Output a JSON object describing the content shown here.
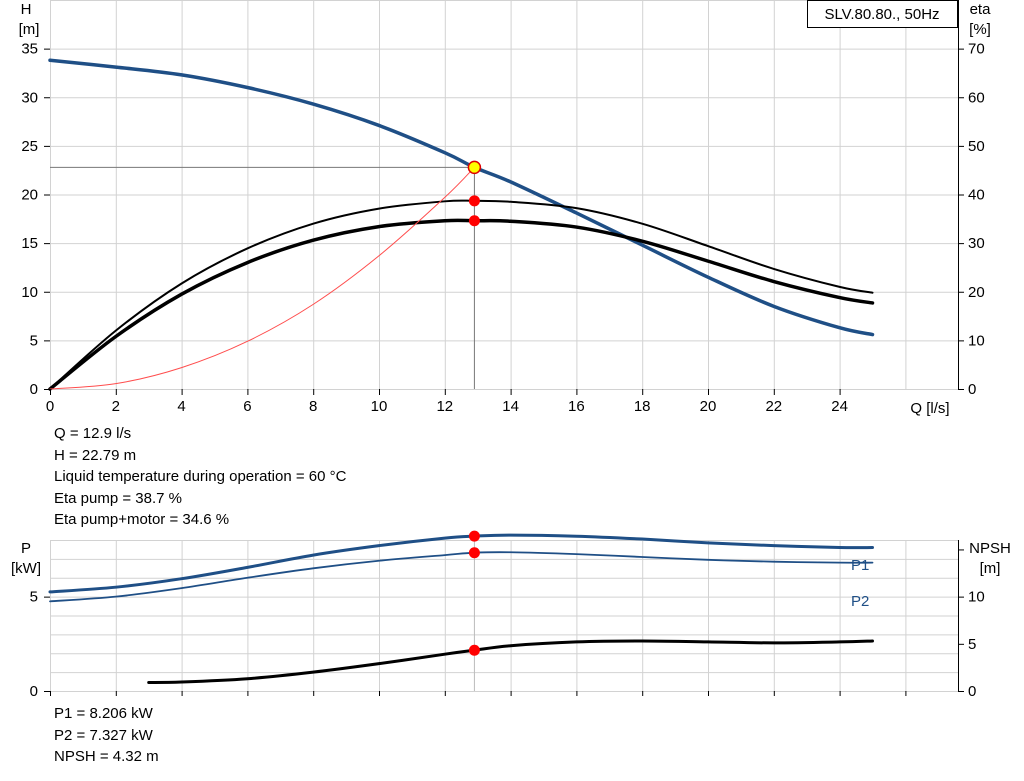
{
  "top": {
    "title_box": "SLV.80.80., 50Hz",
    "left_axis_label": [
      "H",
      "[m]"
    ],
    "right_axis_label": [
      "eta",
      "[%]"
    ],
    "x_axis_label": "Q [l/s]",
    "x_ticks": [
      "0",
      "2",
      "4",
      "6",
      "8",
      "10",
      "12",
      "14",
      "16",
      "18",
      "20",
      "22",
      "24"
    ],
    "y_ticks_left": [
      "0",
      "5",
      "10",
      "15",
      "20",
      "25",
      "30",
      "35"
    ],
    "y_ticks_right": [
      "0",
      "10",
      "20",
      "30",
      "40",
      "50",
      "60",
      "70"
    ]
  },
  "top_info": [
    "Q = 12.9 l/s",
    "H = 22.79 m",
    "Liquid temperature during operation = 60 °C",
    "Eta pump = 38.7 %",
    "Eta pump+motor = 34.6 %"
  ],
  "bottom": {
    "left_axis_label": [
      "P",
      "[kW]"
    ],
    "right_axis_label": [
      "NPSH",
      "[m]"
    ],
    "y_ticks_left": [
      "0",
      "5"
    ],
    "y_ticks_right": [
      "0",
      "5",
      "10"
    ],
    "series_labels": [
      "P1",
      "P2"
    ]
  },
  "bottom_info": [
    "P1 = 8.206 kW",
    "P2 = 7.327 kW",
    "NPSH = 4.32 m"
  ],
  "colors": {
    "head": "#1f4f86",
    "eta": "#000000",
    "system": "#ff4d4d",
    "marker": "#ff0000",
    "duty": "#ffff00"
  },
  "chart_data": [
    {
      "type": "line",
      "title": "SLV.80.80., 50Hz",
      "xlabel": "Q [l/s]",
      "ylabel": "H [m]",
      "ylabel_right": "eta [%]",
      "xlim": [
        0,
        27
      ],
      "ylim": [
        0,
        40
      ],
      "ylim_right": [
        0,
        80
      ],
      "grid": true,
      "series": [
        {
          "axis": "left",
          "color": "#1f4f86",
          "width": 3.5,
          "x": [
            0,
            2,
            4,
            6,
            8,
            10,
            12,
            12.9,
            14,
            16,
            18,
            20,
            22,
            24,
            25
          ],
          "y": [
            33.8,
            33.1,
            32.3,
            31.0,
            29.3,
            27.1,
            24.3,
            22.79,
            21.3,
            18.1,
            14.8,
            11.5,
            8.5,
            6.3,
            5.6
          ]
        },
        {
          "axis": "right",
          "color": "#000000",
          "width": 2,
          "x": [
            0,
            2,
            4,
            6,
            8,
            10,
            12,
            12.9,
            14,
            16,
            18,
            20,
            22,
            24,
            25
          ],
          "y": [
            0,
            12.0,
            21.7,
            28.9,
            34.0,
            37.1,
            38.6,
            38.7,
            38.5,
            37.2,
            34.0,
            29.4,
            24.7,
            21.0,
            19.8
          ]
        },
        {
          "axis": "right",
          "color": "#000000",
          "width": 3.5,
          "x": [
            0,
            2,
            4,
            6,
            8,
            10,
            12,
            12.9,
            14,
            16,
            18,
            20,
            22,
            24,
            25
          ],
          "y": [
            0,
            10.8,
            19.5,
            26.0,
            30.6,
            33.4,
            34.6,
            34.6,
            34.5,
            33.3,
            30.4,
            26.3,
            22.1,
            18.8,
            17.7
          ]
        },
        {
          "axis": "left",
          "color": "#ff4d4d",
          "width": 1,
          "x": [
            0,
            2,
            4,
            6,
            8,
            10,
            12,
            12.9
          ],
          "y": [
            0,
            0.55,
            2.2,
            4.9,
            8.7,
            13.7,
            19.7,
            22.79
          ]
        }
      ],
      "duty_point": {
        "x": 12.9,
        "y": 22.79
      },
      "markers_right": [
        38.7,
        34.6
      ]
    },
    {
      "type": "line",
      "xlabel": "",
      "ylabel": "P [kW]",
      "ylabel_right": "NPSH [m]",
      "xlim": [
        0,
        27
      ],
      "ylim": [
        0,
        8
      ],
      "ylim_right": [
        0,
        16
      ],
      "grid": true,
      "series": [
        {
          "name": "P1",
          "axis": "left",
          "color": "#1f4f86",
          "width": 3,
          "x": [
            0,
            2,
            4,
            6,
            8,
            10,
            12,
            12.9,
            14,
            16,
            18,
            20,
            22,
            24,
            25
          ],
          "y": [
            5.25,
            5.5,
            5.95,
            6.55,
            7.2,
            7.7,
            8.1,
            8.206,
            8.26,
            8.2,
            8.05,
            7.85,
            7.7,
            7.6,
            7.6
          ]
        },
        {
          "name": "P2",
          "axis": "left",
          "color": "#1f4f86",
          "width": 1.8,
          "x": [
            0,
            2,
            4,
            6,
            8,
            10,
            12,
            12.9,
            14,
            16,
            18,
            20,
            22,
            24,
            25
          ],
          "y": [
            4.75,
            5.0,
            5.45,
            6.0,
            6.5,
            6.9,
            7.2,
            7.327,
            7.35,
            7.25,
            7.1,
            6.95,
            6.85,
            6.8,
            6.8
          ]
        },
        {
          "name": "NPSH",
          "axis": "right",
          "color": "#000000",
          "width": 3,
          "x": [
            3,
            4,
            6,
            8,
            10,
            12,
            12.9,
            14,
            16,
            18,
            20,
            22,
            24,
            25
          ],
          "y": [
            0.9,
            0.95,
            1.3,
            2.0,
            2.9,
            3.9,
            4.32,
            4.8,
            5.2,
            5.3,
            5.2,
            5.1,
            5.2,
            5.3
          ]
        }
      ],
      "markers": [
        {
          "axis": "left",
          "x": 12.9,
          "y": 8.206
        },
        {
          "axis": "left",
          "x": 12.9,
          "y": 7.327
        },
        {
          "axis": "right",
          "x": 12.9,
          "y": 4.32
        }
      ]
    }
  ]
}
